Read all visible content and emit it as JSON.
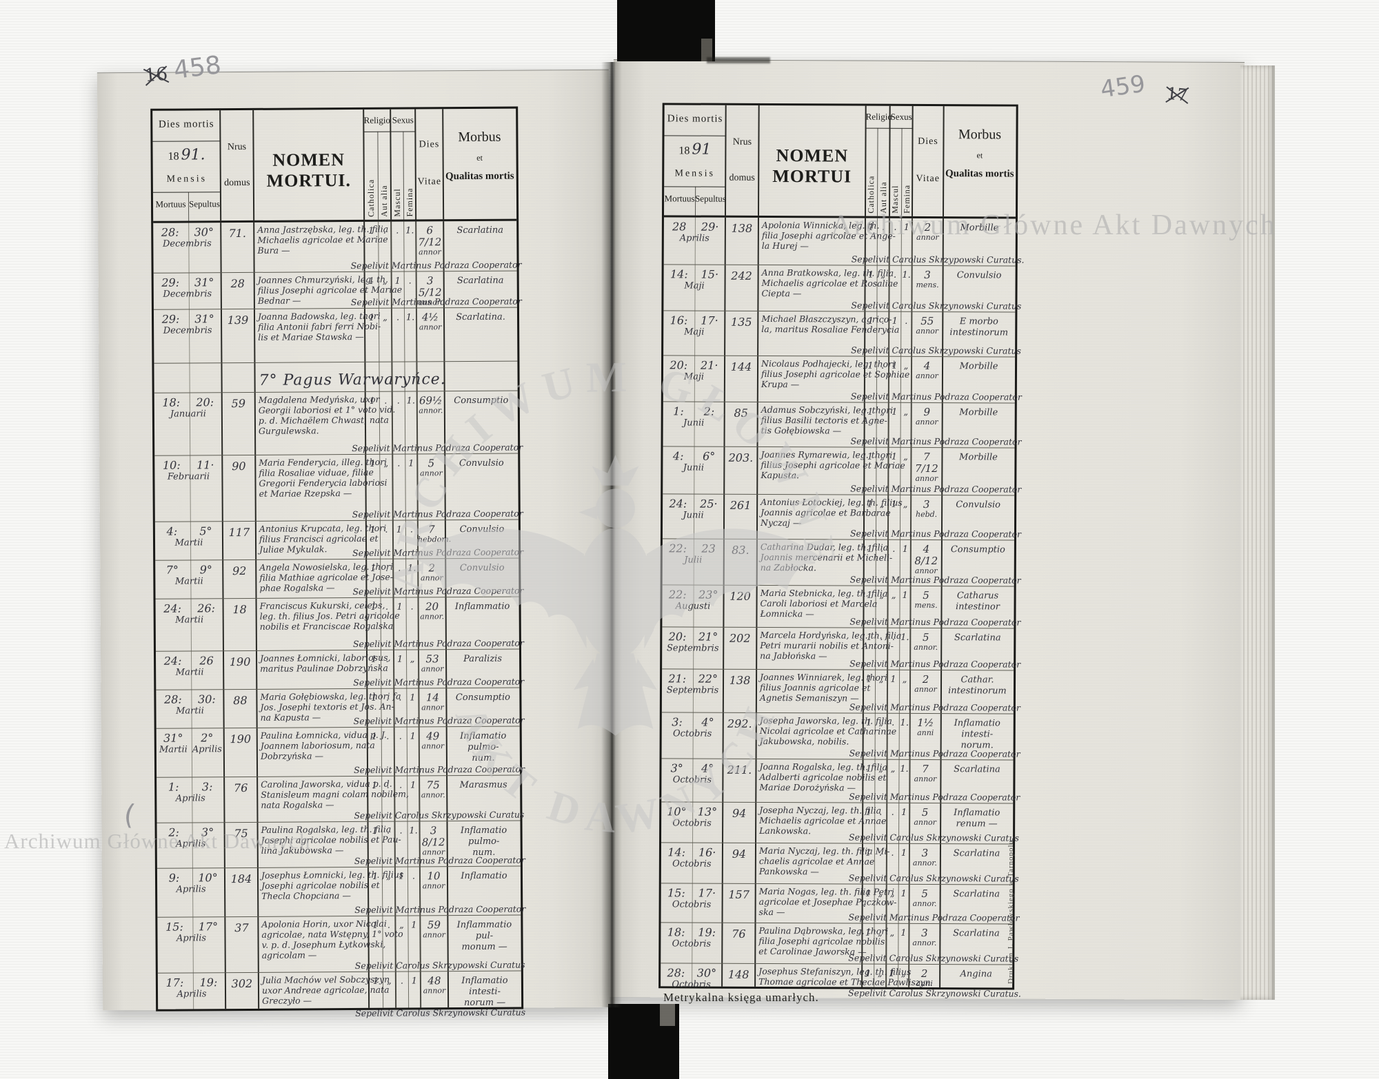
{
  "annotations": {
    "page_number_left": "458",
    "page_number_left_crossed": "16",
    "page_number_right": "459",
    "page_number_right_crossed": "17",
    "pencil_mark": "(",
    "watermark": "Archiwum Główne Akt Dawnych",
    "seal_text_top": "ARCHIWUM GŁÓWNE",
    "seal_text_bottom": "AKT DAWNYCH",
    "bottom_caption": "Metrykalna księga umarłych.",
    "printer_credit": "Drukiem J. Pawłowskiego w Tarnopolu."
  },
  "header": {
    "dies_mortis": "Dies mortis",
    "year_printed": "18",
    "year_hand_left": "91.",
    "year_hand_right": "91",
    "mensis": "Mensis",
    "mortuus": "Mortuus",
    "sepultus": "Sepultus",
    "nrus": "Nrus",
    "domus": "domus",
    "nomen_left": "NOMEN MORTUI.",
    "nomen_right": "NOMEN MORTUI",
    "religio": "Religio",
    "catholica": "Catholica",
    "aut_alia": "Aut alia",
    "sexus": "Sexus",
    "mascul": "Mascul",
    "femina": "Femina",
    "dies": "Dies",
    "vitae": "Vitae",
    "morbus": "Morbus",
    "et": "et",
    "qualitas_mortis": "Qualitas mortis"
  },
  "left_page": {
    "rows": [
      {
        "dm": "28:",
        "ds": "30°",
        "months": [
          "Decembris"
        ],
        "nr": "71.",
        "name": [
          "Anna Jastrzębska, leg. th. filia",
          "Michaelis agricolae et Mariae",
          "Bura —"
        ],
        "c": "1",
        "a": ".",
        "m": ".",
        "f": "1.",
        "v": "6 7/12",
        "vu": "annor",
        "mo": [
          "Scarlatina"
        ],
        "sep": "Sepelivit Martinus Podraza Cooperator"
      },
      {
        "dm": "29:",
        "ds": "31°",
        "months": [
          "Decembris"
        ],
        "nr": "28",
        "name": [
          "Joannes Chmurzyński, leg. th.",
          "filius Josephi agricolae et Mariae",
          "Bednar —"
        ],
        "c": "1",
        "a": "„",
        "m": "1",
        "f": ".",
        "v": "3 5/12",
        "vu": "annor.",
        "mo": [
          "Scarlatina"
        ],
        "sep": "Sepelivit Martinus Podraza Cooperator"
      },
      {
        "dm": "29:",
        "ds": "31°",
        "months": [
          "Decembris"
        ],
        "nr": "139",
        "name": [
          "Joanna Badowska, leg. thori",
          "filia Antonii fabri ferri Nobi-",
          "lis et Mariae Stawska —"
        ],
        "c": "1",
        "a": "„",
        "m": ".",
        "f": "1.",
        "v": "4½",
        "vu": "annor",
        "mo": [
          "Scarlatina."
        ],
        "sep": ""
      },
      {
        "section": "7° Pagus Warwaryńce."
      },
      {
        "dm": "18:",
        "ds": "20:",
        "months": [
          "Januarii"
        ],
        "nr": "59",
        "name": [
          "Magdalena Medyńska, uxor",
          "Georgii laboriosi et 1° voto vid.",
          "p. d. Michaëlem Chwast, nata",
          "Gurgulewska."
        ],
        "c": "1",
        "a": ".",
        "m": ".",
        "f": "1.",
        "v": "69½",
        "vu": "annor.",
        "mo": [
          "Consumptio"
        ],
        "sep": "Sepelivit Martinus Podraza Cooperator"
      },
      {
        "dm": "10:",
        "ds": "11·",
        "months": [
          "Februarii"
        ],
        "nr": "90",
        "name": [
          "Maria Fenderycia, illeg. thori",
          "filia Rosaliae viduae, filiae",
          "Gregorii Fenderycia laboriosi",
          "et Mariae Rzepska —"
        ],
        "c": "1",
        "a": "„",
        "m": ".",
        "f": "1",
        "v": "5",
        "vu": "annor",
        "mo": [
          "Convulsio"
        ],
        "sep": "Sepelivit Martinus Podraza Cooperator"
      },
      {
        "dm": "4:",
        "ds": "5°",
        "months": [
          "Martii"
        ],
        "nr": "117",
        "name": [
          "Antonius Krupcata, leg. thori",
          "filius Francisci agricolae et",
          "Juliae Mykulak."
        ],
        "c": "1",
        "a": ".",
        "m": "1",
        "f": ".",
        "v": "7",
        "vu": "hebdom.",
        "mo": [
          "Convulsio"
        ],
        "sep": "Sepelivit Martinus Podraza Cooperator"
      },
      {
        "dm": "7°",
        "ds": "9°",
        "months": [
          "Martii"
        ],
        "nr": "92",
        "name": [
          "Angela Nowosielska, leg. thori",
          "filia Mathiae agricolae et Jose-",
          "phae Rogalska —"
        ],
        "c": "1",
        "a": ".",
        "m": ".",
        "f": "1.",
        "v": "2",
        "vu": "annor",
        "mo": [
          "Convulsio"
        ],
        "sep": "Sepelivit Martinus Podraza Cooperator"
      },
      {
        "dm": "24:",
        "ds": "26:",
        "months": [
          "Martii"
        ],
        "nr": "18",
        "name": [
          "Franciscus Kukurski, celebs,",
          "leg. th. filius Jos. Petri agricolae",
          "nobilis et Franciscae Rogalska"
        ],
        "c": "1",
        "a": ".",
        "m": "1",
        "f": ".",
        "v": "20",
        "vu": "annor.",
        "mo": [
          "Inflammatio"
        ],
        "sep": "Sepelivit Martinus Podraza Cooperator"
      },
      {
        "dm": "24:",
        "ds": "26",
        "months": [
          "Martii"
        ],
        "nr": "190",
        "name": [
          "Joannes Łomnicki, laboriosus,",
          "maritus Paulinae Dobrzyńska"
        ],
        "c": "1",
        "a": ".",
        "m": "1",
        "f": "„",
        "v": "53",
        "vu": "annor",
        "mo": [
          "Paralizis"
        ],
        "sep": "Sepelivit Martinus Podraza Cooperator"
      },
      {
        "dm": "28:",
        "ds": "30:",
        "months": [
          "Martii"
        ],
        "nr": "88",
        "name": [
          "Maria Gołębiowska, leg. thori fa",
          "Jos. Josephi textoris et Jos. An-",
          "na Kapusta —"
        ],
        "c": "1",
        "a": ".",
        "m": ".",
        "f": "1",
        "v": "14",
        "vu": "annor",
        "mo": [
          "Consumptio"
        ],
        "sep": "Sepelivit Martinus Podraza Cooperator"
      },
      {
        "dm": "31°",
        "ds": "2°",
        "months": [
          "Martii",
          "Aprilis"
        ],
        "nr": "190",
        "name": [
          "Paulina Łomnicka, vidua p. J.",
          "Joannem laboriosum, nata",
          "Dobrzyńska —"
        ],
        "c": "1",
        "a": ".",
        "m": ".",
        "f": "1",
        "v": "49",
        "vu": "annor",
        "mo": [
          "Inflamatio pulmo-",
          "num."
        ],
        "sep": "Sepelivit Martinus Podraza Cooperator"
      },
      {
        "dm": "1:",
        "ds": "3:",
        "months": [
          "Aprilis"
        ],
        "nr": "76",
        "name": [
          "Carolina Jaworska, vidua p. d.",
          "Stanisleum magni colam nobilem,",
          "nata Rogalska —"
        ],
        "c": "1",
        "a": ".",
        "m": ".",
        "f": "1",
        "v": "75",
        "vu": "annor.",
        "mo": [
          "Marasmus"
        ],
        "sep": "Sepelivit Carolus Skrzypowski Curatus"
      },
      {
        "dm": "2:",
        "ds": "3°",
        "months": [
          "Aprilis"
        ],
        "nr": "75",
        "name": [
          "Paulina Rogalska, leg. th. filia",
          "Josephi agricolae nobilis et Pau-",
          "lina Jakubowska —"
        ],
        "c": "1",
        "a": ".",
        "m": ".",
        "f": "1.",
        "v": "3 8/12",
        "vu": "annor",
        "mo": [
          "Inflamatio pulmo-",
          "num."
        ],
        "sep": "Sepelivit Martinus Podraza Cooperator"
      },
      {
        "dm": "9:",
        "ds": "10°",
        "months": [
          "Aprilis"
        ],
        "nr": "184",
        "name": [
          "Josephus Łomnicki, leg. th. filius",
          "Josephi agricolae nobilis et",
          "Thecla Chopciana —"
        ],
        "c": "1",
        "a": "„",
        "m": "1",
        "f": ".",
        "v": "10",
        "vu": "annor",
        "mo": [
          "Inflamatio"
        ],
        "sep": "Sepelivit Martinus Podraza Cooperator"
      },
      {
        "dm": "15:",
        "ds": "17°",
        "months": [
          "Aprilis"
        ],
        "nr": "37",
        "name": [
          "Apolonia Horin, uxor Nicolai",
          "agricolae, nata Wstępny, 1° voto",
          "v. p. d. Josephum Łytkowski,",
          "agricolam —"
        ],
        "c": "1",
        "a": ".",
        "m": "„",
        "f": "1",
        "v": "59",
        "vu": "annor",
        "mo": [
          "Inflammatio pul-",
          "monum —"
        ],
        "sep": "Sepelivit Carolus Skrzypowski Curatus"
      },
      {
        "dm": "17:",
        "ds": "19:",
        "months": [
          "Aprilis"
        ],
        "nr": "302",
        "name": [
          "Julia Machów vel Sobczyszyn",
          "uxor Andreae agricolae, nata",
          "Greczyło —"
        ],
        "c": "1",
        "a": "„",
        "m": ".",
        "f": "1",
        "v": "48",
        "vu": "annor",
        "mo": [
          "Inflamatio intesti-",
          "norum —"
        ],
        "sep": "Sepelivit Carolus Skrzynowski Curatus"
      }
    ]
  },
  "right_page": {
    "rows": [
      {
        "dm": "28",
        "ds": "29·",
        "months": [
          "Aprilis"
        ],
        "nr": "138",
        "name": [
          "Apolonia Winnicka, leg. th.",
          "filia Josephi agricolae et Ange-",
          "la Hurej —"
        ],
        "c": "1",
        "a": ".",
        "m": ".",
        "f": "1",
        "v": "2",
        "vu": "annor",
        "mo": [
          "Morbille"
        ],
        "sep": "Sepelivit Carolus Skrzypowski Curatus."
      },
      {
        "dm": "14:",
        "ds": "15·",
        "months": [
          "Maji"
        ],
        "nr": "242",
        "name": [
          "Anna Bratkowska, leg. th. filia",
          "Michaelis agricolae et Rosaliae",
          "Ciepta —"
        ],
        "c": "1",
        "a": "„",
        "m": ".",
        "f": "1.",
        "v": "3",
        "vu": "mens.",
        "mo": [
          "Convulsio"
        ],
        "sep": "Sepelivit Carolus Skrzynowski Curatus"
      },
      {
        "dm": "16:",
        "ds": "17·",
        "months": [
          "Maji"
        ],
        "nr": "135",
        "name": [
          "Michael Błaszczyszyn, agrico-",
          "la, maritus Rosaliae Fenderycia"
        ],
        "c": "1",
        "a": ".",
        "m": "1",
        "f": ".",
        "v": "55",
        "vu": "annor",
        "mo": [
          "E morbo intestinorum"
        ],
        "sep": "Sepelivit Carolus Skrzypowski Curatus"
      },
      {
        "dm": "20:",
        "ds": "21·",
        "months": [
          "Maji"
        ],
        "nr": "144",
        "name": [
          "Nicolaus Podhajecki, leg. thori",
          "filius Josephi agricolae et Sophiae",
          "Krupa —"
        ],
        "c": "1",
        "a": ".",
        "m": "1",
        "f": "„",
        "v": "4",
        "vu": "annor",
        "mo": [
          "Morbille"
        ],
        "sep": "Sepelivit Martinus Podraza Cooperator"
      },
      {
        "dm": "1:",
        "ds": "2:",
        "months": [
          "Junii"
        ],
        "nr": "85",
        "name": [
          "Adamus Sobczyński, leg. thori",
          "filius Basilii tectoris et Agne-",
          "tis Gołębiowska —"
        ],
        "c": "1",
        "a": "„",
        "m": "1",
        "f": "„",
        "v": "9",
        "vu": "annor",
        "mo": [
          "Morbille"
        ],
        "sep": "Sepelivit Martinus Podraza Cooperator"
      },
      {
        "dm": "4:",
        "ds": "6°",
        "months": [
          "Junii"
        ],
        "nr": "203.",
        "name": [
          "Joannes Rymarewia, leg. thori",
          "filius Josephi agricolae et Mariae",
          "Kapusta."
        ],
        "c": "1",
        "a": "„",
        "m": "1",
        "f": "„",
        "v": "7 7/12",
        "vu": "annor",
        "mo": [
          "Morbille"
        ],
        "sep": "Sepelivit Martinus Podraza Cooperator"
      },
      {
        "dm": "24:",
        "ds": "25·",
        "months": [
          "Junii"
        ],
        "nr": "261",
        "name": [
          "Antonius Łotockiej, leg. th. filius",
          "Joannis agricolae et Barbarae",
          "Nyczaj —"
        ],
        "c": "1",
        "a": "„",
        "m": "1",
        "f": "„",
        "v": "3",
        "vu": "hebd.",
        "mo": [
          "Convulsio"
        ],
        "sep": "Sepelivit Martinus Podraza Cooperator"
      },
      {
        "dm": "22:",
        "ds": "23",
        "months": [
          "Julii"
        ],
        "nr": "83.",
        "name": [
          "Catharina Dudar, leg. th. filia",
          "Joannis mercenarii et Micheli-",
          "na Zabłocka."
        ],
        "c": "1",
        "a": ".",
        "m": ".",
        "f": "1",
        "v": "4 8/12",
        "vu": "annor",
        "mo": [
          "Consumptio"
        ],
        "sep": "Sepelivit Martinus Podraza Cooperator"
      },
      {
        "dm": "22:",
        "ds": "23°",
        "months": [
          "Augusti"
        ],
        "nr": "120",
        "name": [
          "Maria Stebnicka, leg. th. filia",
          "Caroli laboriosi et Marcela",
          "Łomnicka —"
        ],
        "c": "1",
        "a": "„",
        "m": "„",
        "f": "1",
        "v": "5",
        "vu": "mens.",
        "mo": [
          "Catharus intestinor"
        ],
        "sep": "Sepelivit Martinus Podraza Cooperator"
      },
      {
        "dm": "20:",
        "ds": "21°",
        "months": [
          "Septembris"
        ],
        "nr": "202",
        "name": [
          "Marcela Hordyńska, leg. th. filia",
          "Petri murarii nobilis et Antoni-",
          "na Jabłońska —"
        ],
        "c": "1",
        "a": ".",
        "m": ".",
        "f": "1.",
        "v": "5",
        "vu": "annor.",
        "mo": [
          "Scarlatina"
        ],
        "sep": "Sepelivit Martinus Podraza Cooperator"
      },
      {
        "dm": "21:",
        "ds": "22°",
        "months": [
          "Septembris"
        ],
        "nr": "138",
        "name": [
          "Joannes Winniarek, leg. thori",
          "filius Joannis agricolae et",
          "Agnetis Semaniszyn —"
        ],
        "c": "1",
        "a": "„",
        "m": "1",
        "f": "„",
        "v": "2",
        "vu": "annor",
        "mo": [
          "Cathar. intestinorum"
        ],
        "sep": "Sepelivit Martinus Podraza Cooperator"
      },
      {
        "dm": "3:",
        "ds": "4°",
        "months": [
          "Octobris"
        ],
        "nr": "292.",
        "name": [
          "Josepha Jaworska, leg. th. filia",
          "Nicolai agricolae et Catharinae",
          "Jakubowska, nobilis."
        ],
        "c": "1",
        "a": "„",
        "m": ".",
        "f": "1.",
        "v": "1½",
        "vu": "anni",
        "mo": [
          "Inflamatio intesti-",
          "norum."
        ],
        "sep": "Sepelivit Martinus Podraza Cooperator"
      },
      {
        "dm": "3°",
        "ds": "4°",
        "months": [
          "Octobris"
        ],
        "nr": "211.",
        "name": [
          "Joanna Rogalska, leg. th. filia",
          "Adalberti agricolae nobilis et",
          "Mariae Dorożyńska —"
        ],
        "c": "1",
        "a": "„",
        "m": "„",
        "f": "1.",
        "v": "7",
        "vu": "annor",
        "mo": [
          "Scarlatina"
        ],
        "sep": "Sepelivit Martinus Podraza Cooperator"
      },
      {
        "dm": "10°",
        "ds": "13°",
        "months": [
          "Octobris"
        ],
        "nr": "94",
        "name": [
          "Josepha Nyczaj, leg. th. filia",
          "Michaelis agricolae et Annae",
          "Lankowska."
        ],
        "c": "1",
        "a": ".",
        "m": ".",
        "f": "1",
        "v": "5",
        "vu": "annor",
        "mo": [
          "Inflamatio renum —"
        ],
        "sep": "Sepelivit Carolus Skrzynowski Curatus"
      },
      {
        "dm": "14:",
        "ds": "16·",
        "months": [
          "Octobris"
        ],
        "nr": "94",
        "name": [
          "Maria Nyczaj, leg. th. filia Mi-",
          "chaelis agricolae et Annae",
          "Pankowska —"
        ],
        "c": "1",
        "a": ".",
        "m": ".",
        "f": "1",
        "v": "3",
        "vu": "annor.",
        "mo": [
          "Scarlatina"
        ],
        "sep": "Sepelivit Carolus Skrzynowski Curatus"
      },
      {
        "dm": "15:",
        "ds": "17·",
        "months": [
          "Octobris"
        ],
        "nr": "157",
        "name": [
          "Maria Nogas, leg. th. filia Petri",
          "agricolae et Josephae Pączkow-",
          "ska —"
        ],
        "c": "1",
        "a": "„",
        "m": "„",
        "f": "1",
        "v": "5",
        "vu": "annor.",
        "mo": [
          "Scarlatina"
        ],
        "sep": "Sepelivit Martinus Podraza Cooperator"
      },
      {
        "dm": "18:",
        "ds": "19:",
        "months": [
          "Octobris"
        ],
        "nr": "76",
        "name": [
          "Paulina Dąbrowska, leg. thori",
          "filia Josephi agricolae nobilis",
          "et Carolinae Jaworska —"
        ],
        "c": "1",
        "a": "„",
        "m": "„",
        "f": "1",
        "v": "3",
        "vu": "annor.",
        "mo": [
          "Scarlatina"
        ],
        "sep": "Sepelivit Carolus Skrzynowski Curatus"
      },
      {
        "dm": "28:",
        "ds": "30°",
        "months": [
          "Octobris"
        ],
        "nr": "148",
        "name": [
          "Josephus Stefaniszyn, leg. th. filius",
          "Thomae agricolae et Theclae Pawliszyn"
        ],
        "c": "1",
        "a": "„",
        "m": "1",
        "f": "„",
        "v": "2",
        "vu": "anni",
        "mo": [
          "Angina"
        ],
        "sep": "Sepelivit Carolus Skrzynowski Curatus."
      }
    ]
  }
}
